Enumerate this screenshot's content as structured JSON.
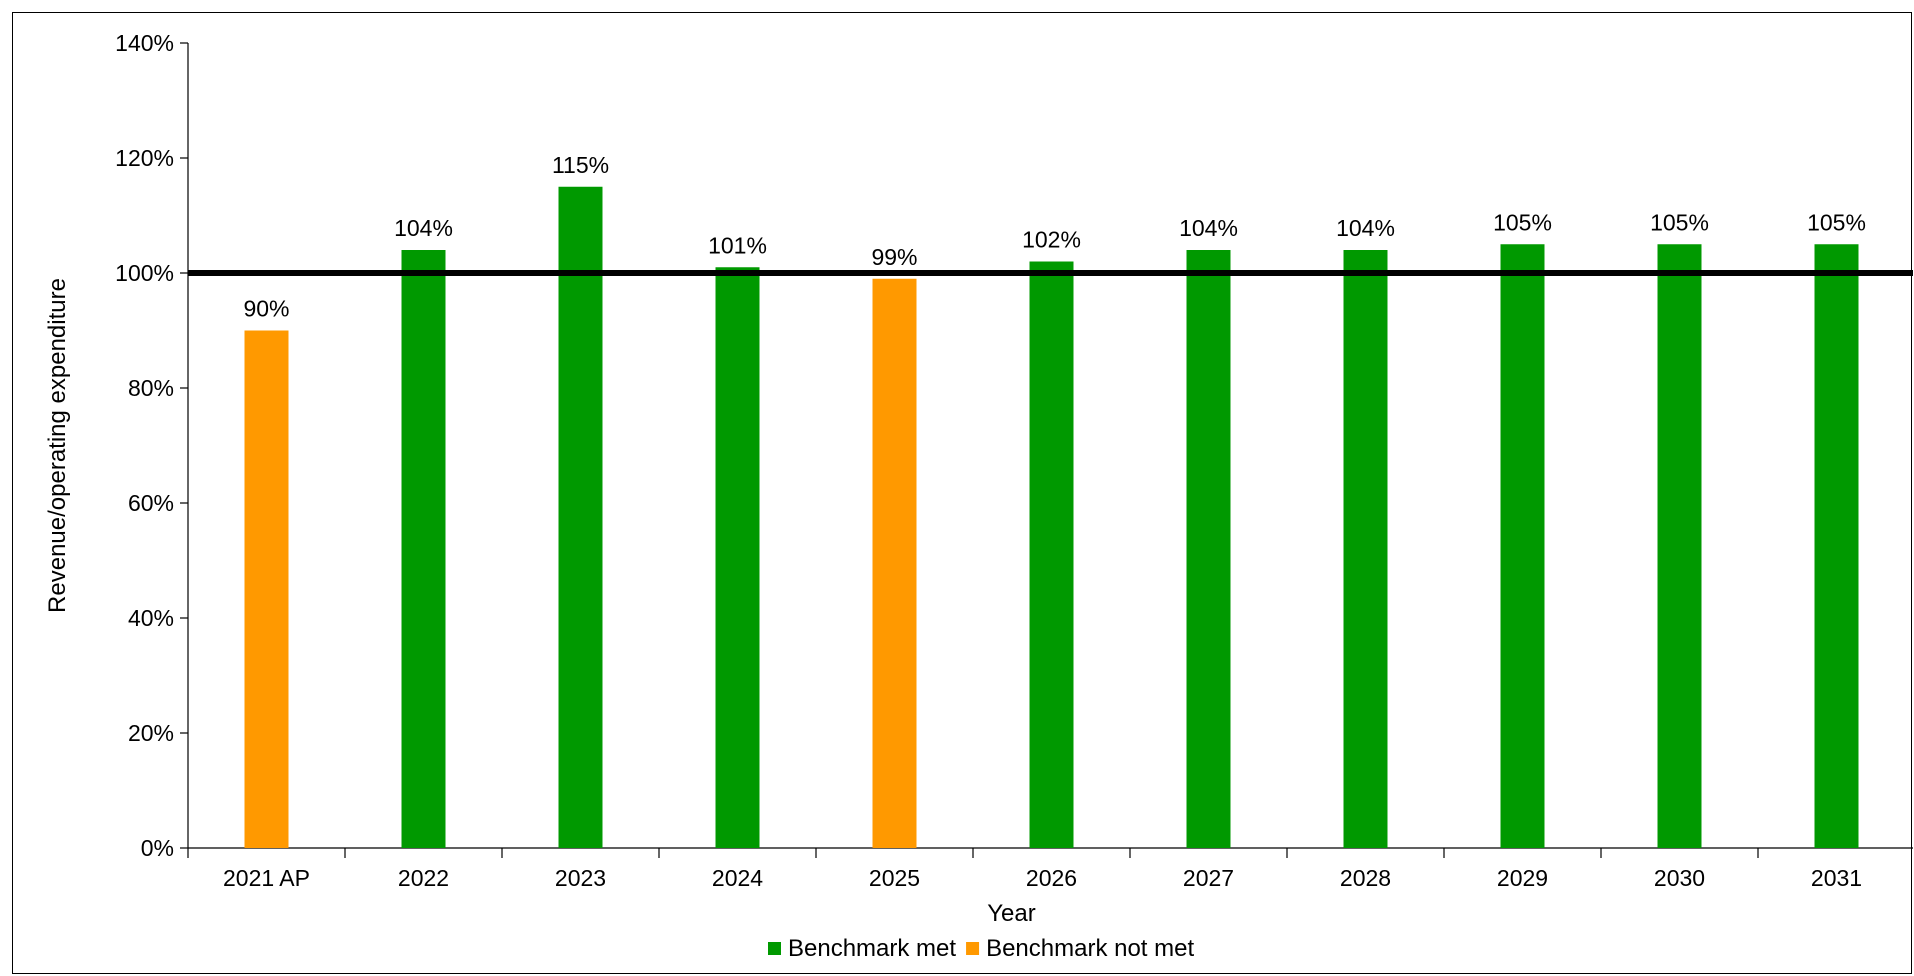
{
  "chart_data": {
    "type": "bar",
    "title": "",
    "xlabel": "Year",
    "ylabel": "Revenue/operating expenditure",
    "categories": [
      "2021 AP",
      "2022",
      "2023",
      "2024",
      "2025",
      "2026",
      "2027",
      "2028",
      "2029",
      "2030",
      "2031"
    ],
    "values": [
      90,
      104,
      115,
      101,
      99,
      102,
      104,
      104,
      105,
      105,
      105
    ],
    "data_labels": [
      "90%",
      "104%",
      "115%",
      "101%",
      "99%",
      "102%",
      "104%",
      "104%",
      "105%",
      "105%",
      "105%"
    ],
    "status": [
      "not_met",
      "met",
      "met",
      "met",
      "not_met",
      "met",
      "met",
      "met",
      "met",
      "met",
      "met"
    ],
    "ylim": [
      0,
      140
    ],
    "yticks": [
      0,
      20,
      40,
      60,
      80,
      100,
      120,
      140
    ],
    "ytick_labels": [
      "0%",
      "20%",
      "40%",
      "60%",
      "80%",
      "100%",
      "120%",
      "140%"
    ],
    "benchmark_line": 100,
    "grid": false,
    "legend_position": "bottom",
    "series": [
      {
        "name": "Benchmark met",
        "color": "#009900",
        "key": "met"
      },
      {
        "name": "Benchmark not met",
        "color": "#FF9900",
        "key": "not_met"
      }
    ],
    "benchmark_color": "#000000"
  }
}
